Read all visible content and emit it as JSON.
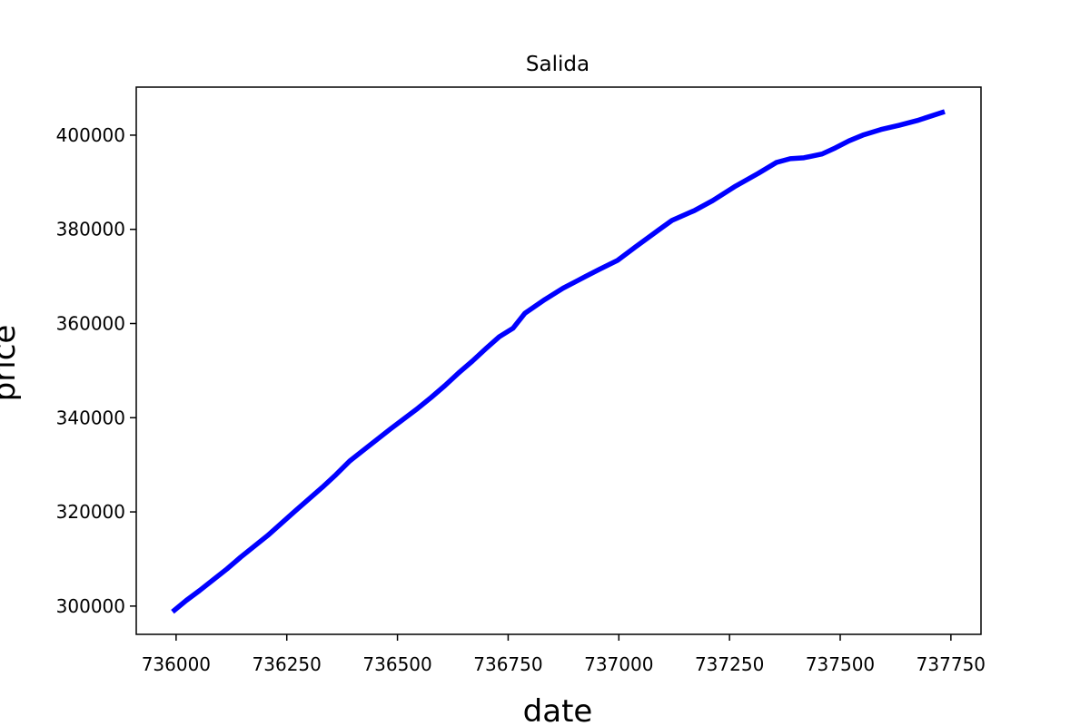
{
  "chart_data": {
    "type": "line",
    "title": "Salida",
    "x_label": "date",
    "y_label": "price",
    "xlim": [
      735910,
      737818
    ],
    "ylim": [
      294000,
      410200
    ],
    "xticks": [
      736000,
      736250,
      736500,
      736750,
      737000,
      737250,
      737500,
      737750
    ],
    "yticks": [
      300000,
      320000,
      340000,
      360000,
      380000,
      400000
    ],
    "grid": false,
    "x": [
      735992,
      736023,
      736053,
      736115,
      736146,
      736207,
      736269,
      736330,
      736361,
      736392,
      736423,
      736484,
      736546,
      736576,
      736607,
      736638,
      736669,
      736700,
      736730,
      736761,
      736788,
      736833,
      736874,
      736925,
      736956,
      736997,
      737038,
      737089,
      737120,
      737171,
      737212,
      737264,
      737315,
      737356,
      737387,
      737418,
      737459,
      737489,
      737520,
      737551,
      737592,
      737633,
      737674,
      737736
    ],
    "series": [
      {
        "name": "price",
        "color": "#0000ff",
        "values": [
          298800,
          301200,
          303300,
          307900,
          310400,
          315000,
          320200,
          325200,
          327900,
          330800,
          333100,
          337600,
          342000,
          344300,
          346800,
          349500,
          352000,
          354700,
          357200,
          359000,
          362200,
          365100,
          367500,
          370000,
          371500,
          373400,
          376300,
          379800,
          381900,
          384000,
          386100,
          389200,
          391900,
          394200,
          395000,
          395200,
          396000,
          397300,
          398800,
          400000,
          401200,
          402100,
          403100,
          405000
        ]
      }
    ]
  }
}
